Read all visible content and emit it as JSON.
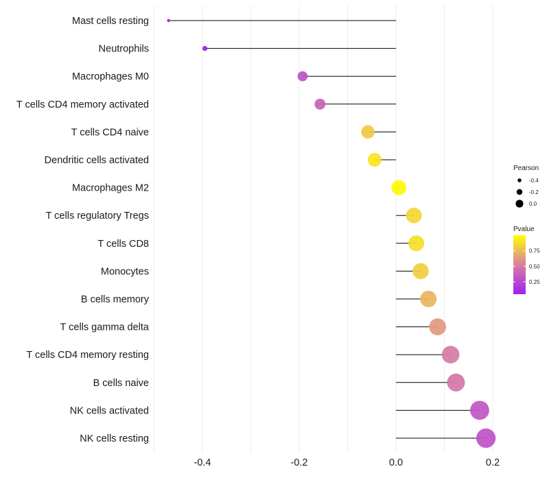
{
  "chart_data": {
    "type": "lollipop",
    "xlim": [
      -0.5,
      0.25
    ],
    "xticks": [
      -0.4,
      -0.2,
      0.0,
      0.2
    ],
    "xtick_labels": [
      "-0.4",
      "-0.2",
      "0.0",
      "0.2"
    ],
    "xlabel": "",
    "ylabel": "",
    "grid": true,
    "categories": [
      "Mast cells resting",
      "Neutrophils",
      "Macrophages M0",
      "T cells CD4 memory activated",
      "T cells CD4 naive",
      "Dendritic cells activated",
      "Macrophages M2",
      "T cells regulatory  Tregs ",
      "T cells CD8",
      "Monocytes",
      "B cells memory",
      "T cells gamma delta",
      "T cells CD4 memory resting",
      "B cells naive",
      "NK cells activated",
      "NK cells resting"
    ],
    "values": [
      -0.47,
      -0.395,
      -0.193,
      -0.157,
      -0.058,
      -0.044,
      0.006,
      0.037,
      0.042,
      0.051,
      0.067,
      0.086,
      0.113,
      0.124,
      0.173,
      0.186
    ],
    "pvalues": [
      0.08,
      0.05,
      0.3,
      0.38,
      0.8,
      0.9,
      0.98,
      0.85,
      0.88,
      0.82,
      0.72,
      0.62,
      0.5,
      0.48,
      0.32,
      0.3
    ],
    "legend_size": {
      "title": "Pearson",
      "labels": [
        "-0.4",
        "-0.2",
        "0.0"
      ],
      "values": [
        -0.4,
        -0.2,
        0.0
      ]
    },
    "legend_color": {
      "title": "Pvalue",
      "labels": [
        "0.75",
        "0.50",
        "0.25"
      ],
      "values": [
        0.75,
        0.5,
        0.25
      ],
      "range": [
        0.05,
        1.0
      ],
      "low_color": "#a020f0",
      "mid_color": "#d97fa0",
      "high_color": "#ffff00"
    },
    "legend_position": "right"
  }
}
